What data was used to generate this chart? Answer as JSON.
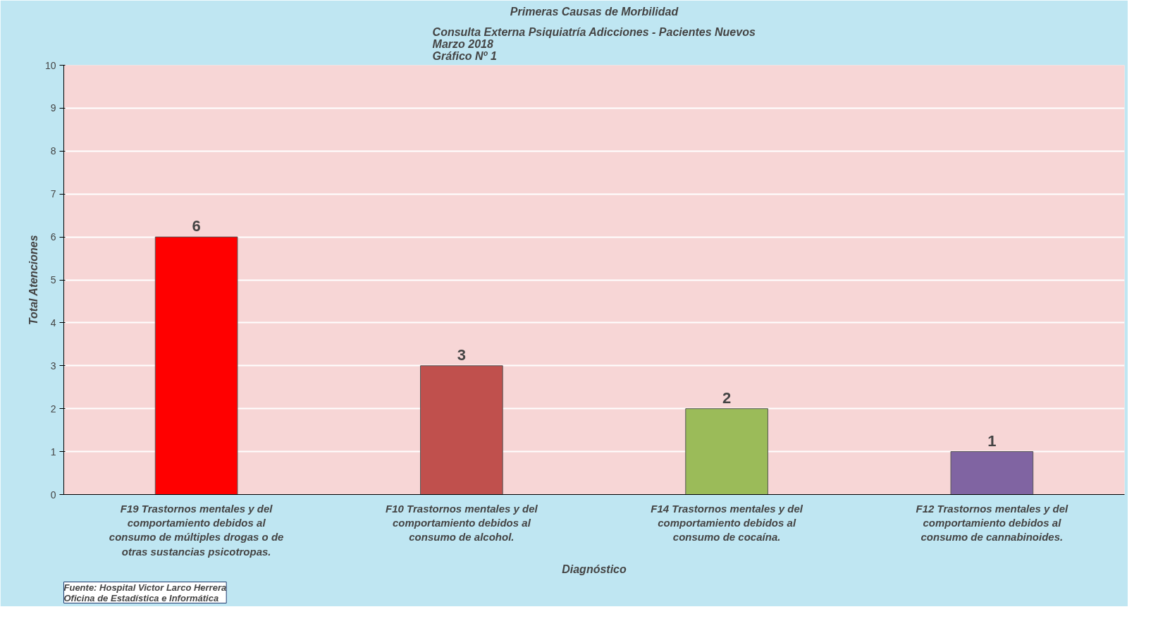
{
  "chart_data": {
    "type": "bar",
    "title": "Primeras Causas de Morbilidad",
    "subtitle": "Consulta Externa Psiquiatría Adicciones - Pacientes Nuevos\nMarzo 2018\nGráfico Nº 1",
    "xlabel": "Diagnóstico",
    "ylabel": "Total Atenciones",
    "categories": [
      "F19 Trastornos mentales y del comportamiento debidos al consumo de múltiples drogas o de otras sustancias psicotropas.",
      "F10 Trastornos mentales y del comportamiento debidos al consumo de alcohol.",
      "F14 Trastornos mentales y del comportamiento debidos al consumo de cocaína.",
      "F12 Trastornos mentales y del comportamiento debidos al consumo de cannabinoides."
    ],
    "values": [
      6,
      3,
      2,
      1
    ],
    "colors": [
      "#ff0000",
      "#c0504d",
      "#9bbb59",
      "#8064a2"
    ],
    "ylim": [
      0,
      10
    ],
    "yticks": [
      0,
      1,
      2,
      3,
      4,
      5,
      6,
      7,
      8,
      9,
      10
    ],
    "grid": "y",
    "data_labels": true,
    "annotations": [
      "Fuente: Hospital Victor Larco Herrera\nOficina de Estadística e Informática"
    ]
  }
}
